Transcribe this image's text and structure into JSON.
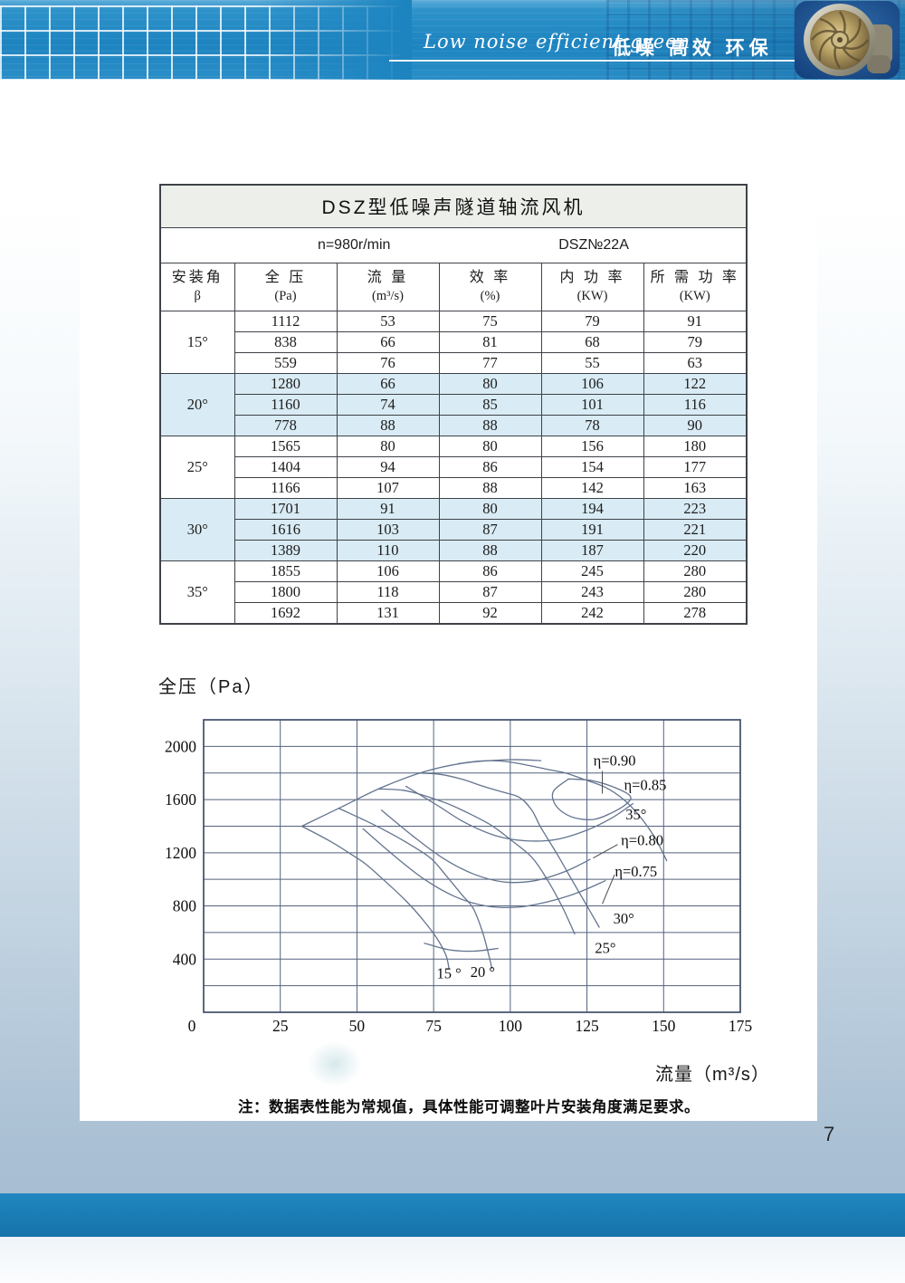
{
  "header": {
    "tagline_script": "Low noise efficient green",
    "tagline_cn": "低噪  高效  环保",
    "fan_image": "axial-fan-impeller-photo"
  },
  "table": {
    "title": "DSZ型低噪声隧道轴流风机",
    "speed": "n=980r/min",
    "model": "DSZ№22A",
    "columns": [
      {
        "name": "安装角",
        "unit": "β"
      },
      {
        "name": "全 压",
        "unit": "(Pa)"
      },
      {
        "name": "流 量",
        "unit": "(m³/s)"
      },
      {
        "name": "效 率",
        "unit": "(%)"
      },
      {
        "name": "内 功 率",
        "unit": "(KW)"
      },
      {
        "name": "所 需 功 率",
        "unit": "(KW)"
      }
    ],
    "groups": [
      {
        "angle": "15°",
        "shaded": false,
        "rows": [
          [
            "1112",
            "53",
            "75",
            "79",
            "91"
          ],
          [
            "838",
            "66",
            "81",
            "68",
            "79"
          ],
          [
            "559",
            "76",
            "77",
            "55",
            "63"
          ]
        ]
      },
      {
        "angle": "20°",
        "shaded": true,
        "rows": [
          [
            "1280",
            "66",
            "80",
            "106",
            "122"
          ],
          [
            "1160",
            "74",
            "85",
            "101",
            "116"
          ],
          [
            "778",
            "88",
            "88",
            "78",
            "90"
          ]
        ]
      },
      {
        "angle": "25°",
        "shaded": false,
        "rows": [
          [
            "1565",
            "80",
            "80",
            "156",
            "180"
          ],
          [
            "1404",
            "94",
            "86",
            "154",
            "177"
          ],
          [
            "1166",
            "107",
            "88",
            "142",
            "163"
          ]
        ]
      },
      {
        "angle": "30°",
        "shaded": true,
        "rows": [
          [
            "1701",
            "91",
            "80",
            "194",
            "223"
          ],
          [
            "1616",
            "103",
            "87",
            "191",
            "221"
          ],
          [
            "1389",
            "110",
            "88",
            "187",
            "220"
          ]
        ]
      },
      {
        "angle": "35°",
        "shaded": false,
        "rows": [
          [
            "1855",
            "106",
            "86",
            "245",
            "280"
          ],
          [
            "1800",
            "118",
            "87",
            "243",
            "280"
          ],
          [
            "1692",
            "131",
            "92",
            "242",
            "278"
          ]
        ]
      }
    ]
  },
  "chart_data": {
    "type": "line",
    "ylabel": "全压（Pa）",
    "xlabel": "流量（m³/s）",
    "x_range": [
      0,
      175
    ],
    "y_range": [
      0,
      2200
    ],
    "grid_step": {
      "x": 25,
      "y": 200
    },
    "x_ticks": [
      "0",
      "25",
      "50",
      "75",
      "100",
      "125",
      "150",
      "175"
    ],
    "y_tick_labels": [
      "400",
      "800",
      "1200",
      "1600",
      "2000"
    ],
    "series": [
      {
        "name": "15°",
        "points": [
          [
            32,
            1400
          ],
          [
            41,
            1290
          ],
          [
            48,
            1190
          ],
          [
            53,
            1112
          ],
          [
            59,
            990
          ],
          [
            66,
            838
          ],
          [
            71,
            710
          ],
          [
            76,
            559
          ],
          [
            79,
            430
          ],
          [
            80,
            330
          ]
        ]
      },
      {
        "name": "20°",
        "points": [
          [
            44,
            1535
          ],
          [
            52,
            1450
          ],
          [
            59,
            1370
          ],
          [
            66,
            1280
          ],
          [
            74,
            1160
          ],
          [
            79,
            1030
          ],
          [
            84,
            890
          ],
          [
            88,
            778
          ],
          [
            91,
            600
          ],
          [
            93,
            430
          ],
          [
            94,
            330
          ]
        ]
      },
      {
        "name": "25°",
        "points": [
          [
            57,
            1680
          ],
          [
            65,
            1670
          ],
          [
            72,
            1630
          ],
          [
            80,
            1565
          ],
          [
            87,
            1490
          ],
          [
            94,
            1404
          ],
          [
            100,
            1300
          ],
          [
            107,
            1166
          ],
          [
            112,
            1000
          ],
          [
            117,
            790
          ],
          [
            121,
            590
          ]
        ]
      },
      {
        "name": "30°",
        "points": [
          [
            70,
            1800
          ],
          [
            77,
            1790
          ],
          [
            84,
            1755
          ],
          [
            91,
            1701
          ],
          [
            97,
            1660
          ],
          [
            103,
            1616
          ],
          [
            107,
            1520
          ],
          [
            110,
            1389
          ],
          [
            115,
            1200
          ],
          [
            120,
            1000
          ],
          [
            125,
            800
          ],
          [
            129,
            640
          ]
        ]
      },
      {
        "name": "35°",
        "points": [
          [
            83,
            1870
          ],
          [
            90,
            1890
          ],
          [
            97,
            1890
          ],
          [
            103,
            1870
          ],
          [
            112,
            1828
          ],
          [
            118,
            1800
          ],
          [
            124,
            1752
          ],
          [
            131,
            1692
          ],
          [
            137,
            1600
          ],
          [
            142,
            1480
          ],
          [
            147,
            1320
          ],
          [
            151,
            1140
          ]
        ]
      }
    ],
    "stall_line": [
      [
        32,
        1400
      ],
      [
        45,
        1545
      ],
      [
        58,
        1690
      ],
      [
        72,
        1810
      ],
      [
        85,
        1875
      ],
      [
        100,
        1900
      ],
      [
        110,
        1893
      ]
    ],
    "contours": [
      {
        "name": "eta-0.90",
        "closed": true,
        "points": [
          [
            119,
            1755
          ],
          [
            114,
            1660
          ],
          [
            115,
            1550
          ],
          [
            120,
            1470
          ],
          [
            127,
            1450
          ],
          [
            133,
            1500
          ],
          [
            138,
            1570
          ],
          [
            139,
            1630
          ],
          [
            133,
            1700
          ],
          [
            126,
            1745
          ],
          [
            119,
            1755
          ]
        ]
      },
      {
        "name": "eta-0.85",
        "closed": false,
        "points": [
          [
            66,
            1700
          ],
          [
            76,
            1560
          ],
          [
            85,
            1430
          ],
          [
            95,
            1330
          ],
          [
            105,
            1290
          ],
          [
            115,
            1300
          ],
          [
            125,
            1370
          ],
          [
            133,
            1460
          ],
          [
            140,
            1570
          ]
        ]
      },
      {
        "name": "eta-0.80",
        "closed": false,
        "points": [
          [
            58,
            1520
          ],
          [
            68,
            1330
          ],
          [
            78,
            1160
          ],
          [
            88,
            1040
          ],
          [
            98,
            980
          ],
          [
            108,
            990
          ],
          [
            118,
            1060
          ],
          [
            126,
            1150
          ]
        ]
      },
      {
        "name": "eta-0.75",
        "closed": false,
        "points": [
          [
            52,
            1380
          ],
          [
            62,
            1180
          ],
          [
            72,
            1000
          ],
          [
            82,
            870
          ],
          [
            92,
            800
          ],
          [
            102,
            790
          ],
          [
            112,
            830
          ],
          [
            122,
            900
          ],
          [
            131,
            990
          ]
        ]
      },
      {
        "name": "low-arc",
        "closed": false,
        "points": [
          [
            72,
            520
          ],
          [
            80,
            470
          ],
          [
            88,
            460
          ],
          [
            96,
            480
          ]
        ]
      }
    ],
    "labels": [
      {
        "text": "η=0.90",
        "q": 134,
        "p": 1890
      },
      {
        "text": "η=0.85",
        "q": 144,
        "p": 1705
      },
      {
        "text": "35°",
        "q": 141,
        "p": 1485
      },
      {
        "text": "η=0.80",
        "q": 143,
        "p": 1290
      },
      {
        "text": "η=0.75",
        "q": 141,
        "p": 1055
      },
      {
        "text": "30°",
        "q": 137,
        "p": 700
      },
      {
        "text": "25°",
        "q": 131,
        "p": 480
      },
      {
        "text": "15 °",
        "q": 80,
        "p": 290
      },
      {
        "text": "20 °",
        "q": 91,
        "p": 300
      }
    ],
    "leaders": [
      {
        "from": [
          130,
          1815
        ],
        "to": [
          130,
          1645
        ]
      },
      {
        "from": [
          135,
          1262
        ],
        "to": [
          127,
          1160
        ]
      },
      {
        "from": [
          134,
          1035
        ],
        "to": [
          130,
          815
        ]
      }
    ]
  },
  "note": "注：数据表性能为常规值，具体性能可调整叶片安装角度满足要求。",
  "page": {
    "number": "7"
  }
}
